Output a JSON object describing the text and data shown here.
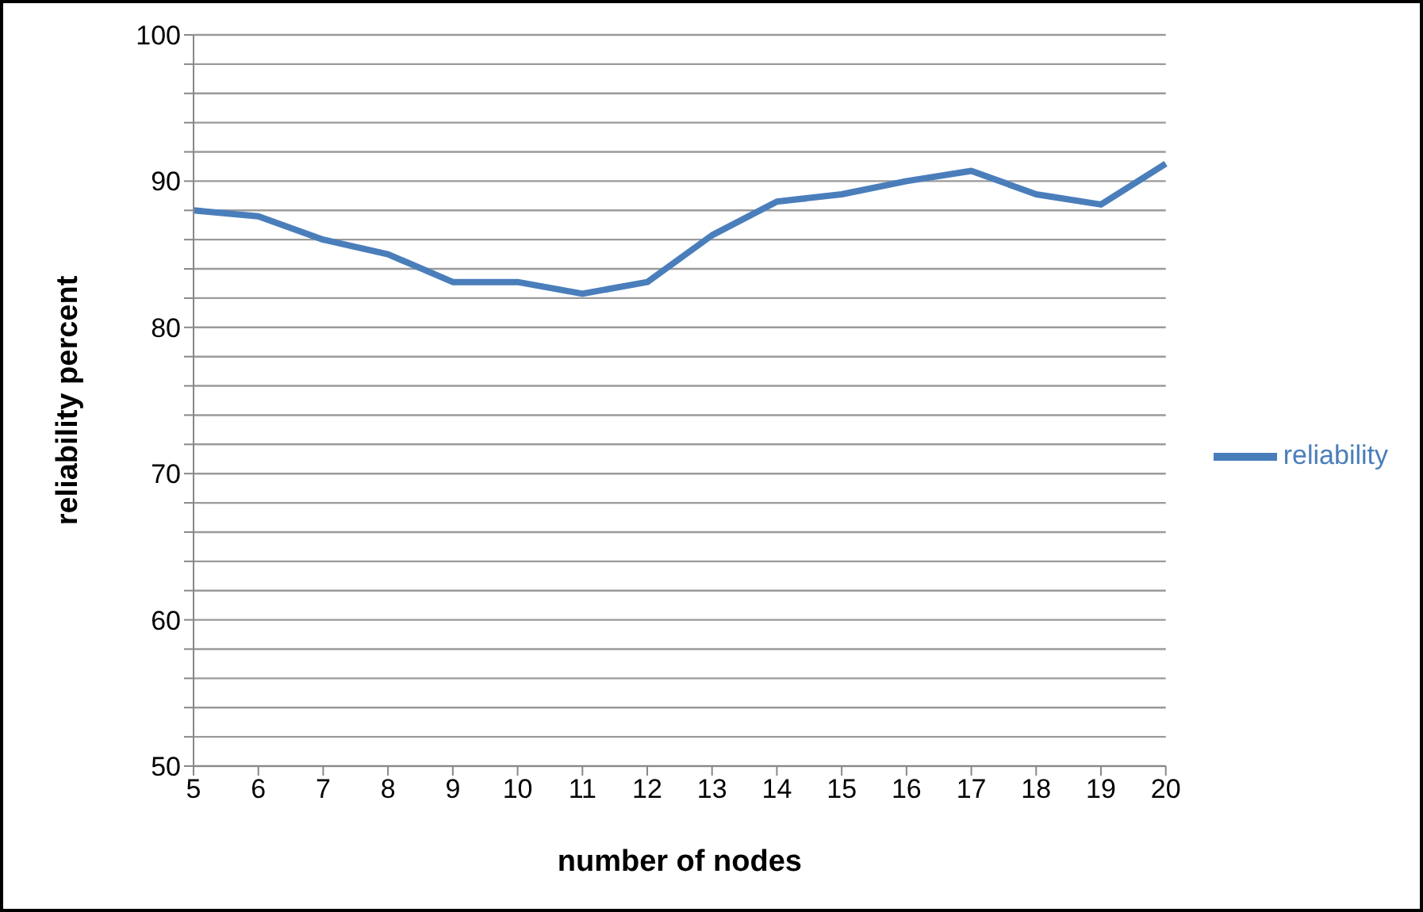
{
  "chart_data": {
    "type": "line",
    "xlabel": "number of nodes",
    "ylabel": "reliability percent",
    "categories": [
      "5",
      "6",
      "7",
      "8",
      "9",
      "10",
      "11",
      "12",
      "13",
      "14",
      "15",
      "16",
      "17",
      "18",
      "19",
      "20"
    ],
    "series": [
      {
        "name": "reliability",
        "color": "#4a7ebb",
        "values": [
          88,
          87.6,
          86,
          85,
          83.1,
          83.1,
          82.3,
          83.1,
          86.3,
          88.6,
          89.1,
          90,
          90.7,
          89.1,
          88.4,
          91.2
        ]
      }
    ],
    "ylim": [
      50,
      100
    ],
    "yticks": [
      50,
      {
        "value": 52,
        "label": null
      },
      {
        "value": 54,
        "label": null
      },
      {
        "value": 56,
        "label": null
      },
      {
        "value": 58,
        "label": null
      },
      60,
      {
        "value": 62,
        "label": null
      },
      {
        "value": 64,
        "label": null
      },
      {
        "value": 66,
        "label": null
      },
      {
        "value": 68,
        "label": null
      },
      70,
      {
        "value": 72,
        "label": null
      },
      {
        "value": 74,
        "label": null
      },
      {
        "value": 76,
        "label": null
      },
      {
        "value": 78,
        "label": null
      },
      80,
      {
        "value": 82,
        "label": null
      },
      {
        "value": 84,
        "label": null
      },
      {
        "value": 86,
        "label": null
      },
      {
        "value": 88,
        "label": null
      },
      90,
      {
        "value": 92,
        "label": null
      },
      {
        "value": 94,
        "label": null
      },
      {
        "value": 96,
        "label": null
      },
      {
        "value": 98,
        "label": null
      },
      100
    ],
    "grid": "y",
    "legend": "right",
    "marker": "none",
    "line_style": "solid"
  }
}
